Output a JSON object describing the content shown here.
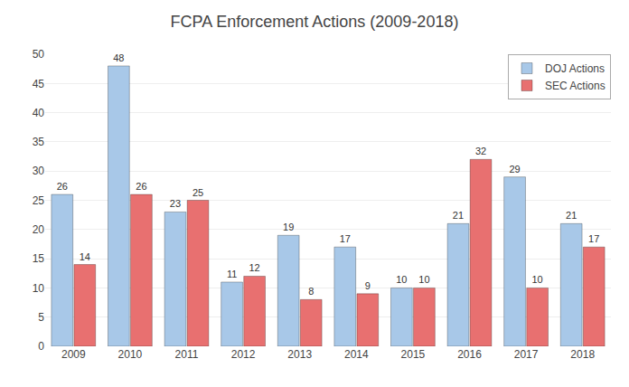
{
  "chart_data": {
    "type": "bar",
    "title": "FCPA Enforcement Actions (2009-2018)",
    "categories": [
      "2009",
      "2010",
      "2011",
      "2012",
      "2013",
      "2014",
      "2015",
      "2016",
      "2017",
      "2018"
    ],
    "series": [
      {
        "name": "DOJ Actions",
        "color": "#a8c8e8",
        "values": [
          26,
          48,
          23,
          11,
          19,
          17,
          10,
          21,
          29,
          21
        ]
      },
      {
        "name": "SEC Actions",
        "color": "#e87070",
        "values": [
          14,
          26,
          25,
          12,
          8,
          9,
          10,
          32,
          10,
          17
        ]
      }
    ],
    "ylim": [
      0,
      50
    ],
    "yticks": [
      0,
      5,
      10,
      15,
      20,
      25,
      30,
      35,
      40,
      45,
      50
    ],
    "grid": true,
    "legend": "upper right",
    "data_labels": true
  }
}
